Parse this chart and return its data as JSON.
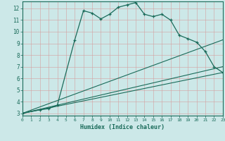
{
  "line1": {
    "x": [
      0,
      2,
      3,
      4,
      6,
      7,
      8,
      9,
      10,
      11,
      12,
      13,
      14,
      15,
      16,
      17,
      18,
      19,
      20,
      21,
      22,
      23
    ],
    "y": [
      3.0,
      3.3,
      3.4,
      3.7,
      9.3,
      11.8,
      11.6,
      11.1,
      11.5,
      12.1,
      12.3,
      12.5,
      11.5,
      11.3,
      11.5,
      11.0,
      9.7,
      9.4,
      9.1,
      8.3,
      7.0,
      6.5
    ]
  },
  "line2": {
    "x": [
      0,
      23
    ],
    "y": [
      3.0,
      6.5
    ]
  },
  "line3": {
    "x": [
      0,
      23
    ],
    "y": [
      3.0,
      7.0
    ]
  },
  "line4": {
    "x": [
      0,
      23
    ],
    "y": [
      3.0,
      9.3
    ]
  },
  "color": "#1a6b5a",
  "bg_color": "#cce8e8",
  "grid_major_color": "#aacfcf",
  "grid_minor_color": "#d9ecec",
  "xlabel": "Humidex (Indice chaleur)",
  "xlim": [
    0,
    23
  ],
  "ylim": [
    2.8,
    12.6
  ],
  "xticks": [
    0,
    1,
    2,
    3,
    4,
    5,
    6,
    7,
    8,
    9,
    10,
    11,
    12,
    13,
    14,
    15,
    16,
    17,
    18,
    19,
    20,
    21,
    22,
    23
  ],
  "yticks": [
    3,
    4,
    5,
    6,
    7,
    8,
    9,
    10,
    11,
    12
  ]
}
